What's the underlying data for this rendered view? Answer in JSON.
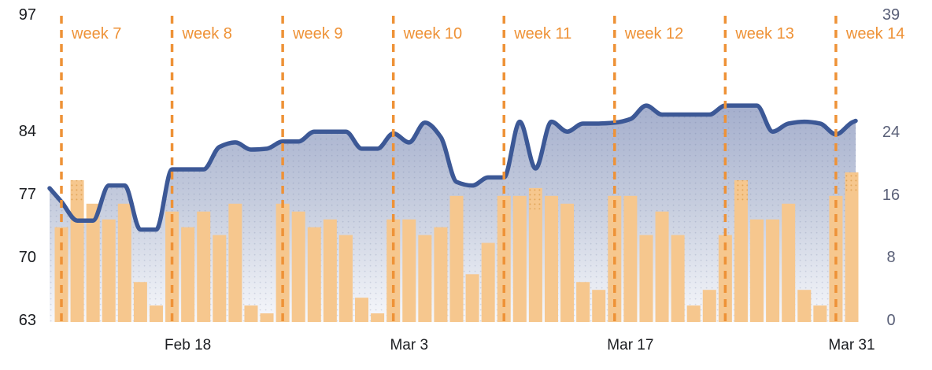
{
  "chart_data": {
    "type": "line+bar",
    "x_unit": "day",
    "weeks": [
      {
        "label": "week 7",
        "day_index": 0
      },
      {
        "label": "week 8",
        "day_index": 7
      },
      {
        "label": "week 9",
        "day_index": 14
      },
      {
        "label": "week 10",
        "day_index": 21
      },
      {
        "label": "week 11",
        "day_index": 28
      },
      {
        "label": "week 12",
        "day_index": 35
      },
      {
        "label": "week 13",
        "day_index": 42
      },
      {
        "label": "week 14",
        "day_index": 49
      }
    ],
    "x_axis": {
      "tick_labels": [
        "Feb 18",
        "Mar 3",
        "Mar 17",
        "Mar 31"
      ],
      "tick_day_indices": [
        8,
        22,
        36,
        50
      ]
    },
    "left_axis": {
      "tick_labels": [
        "97",
        "84",
        "77",
        "70",
        "63"
      ],
      "tick_values": [
        97,
        84,
        77,
        70,
        63
      ],
      "range": [
        63,
        97
      ]
    },
    "right_axis": {
      "tick_labels": [
        "39",
        "24",
        "16",
        "8",
        "0"
      ],
      "tick_values": [
        39,
        24,
        16,
        8,
        0
      ],
      "range": [
        0,
        39
      ]
    },
    "line_series": {
      "name": "daily-trend-line",
      "color": "#3C5896",
      "values": [
        76.3,
        74.2,
        74.2,
        78.1,
        78.1,
        73.2,
        73.2,
        79.9,
        79.9,
        79.9,
        82.4,
        82.9,
        82.1,
        82.2,
        83.0,
        83.0,
        84.1,
        84.1,
        84.1,
        82.2,
        82.2,
        83.9,
        82.9,
        85.1,
        83.5,
        78.5,
        78.1,
        79.0,
        79.0,
        85.2,
        80.0,
        85.2,
        84.1,
        85.0,
        85.0,
        85.1,
        85.5,
        87.0,
        86.0,
        86.0,
        86.0,
        86.0,
        87.0,
        87.0,
        87.0,
        84.1,
        85.0,
        85.2,
        85.0,
        83.8,
        85.1
      ]
    },
    "bar_series": {
      "name": "daily-activity-bars",
      "color": "#F6C78E",
      "values": [
        12,
        18,
        15,
        13,
        15,
        5,
        2,
        14,
        12,
        14,
        11,
        15,
        2,
        1,
        15,
        14,
        12,
        13,
        11,
        3,
        1,
        13,
        13,
        11,
        12,
        16,
        6,
        10,
        16,
        16,
        17,
        16,
        15,
        5,
        4,
        16,
        16,
        11,
        14,
        11,
        2,
        4,
        11,
        18,
        13,
        13,
        15,
        4,
        2,
        16,
        19
      ]
    },
    "grid": "off",
    "legend": "none",
    "colors": {
      "accent_orange": "#EE9237",
      "line_blue": "#3C5896",
      "bar_orange": "#F6C78E",
      "bar_dot_orange": "#DB9B48",
      "fill_top": "#A5AFCD",
      "fill_bottom": "#F8F9FC",
      "axis_left_text": "#1B1D21",
      "axis_right_text": "#5A6078",
      "date_text": "#1B1D21",
      "background": "#FFFFFF"
    }
  }
}
